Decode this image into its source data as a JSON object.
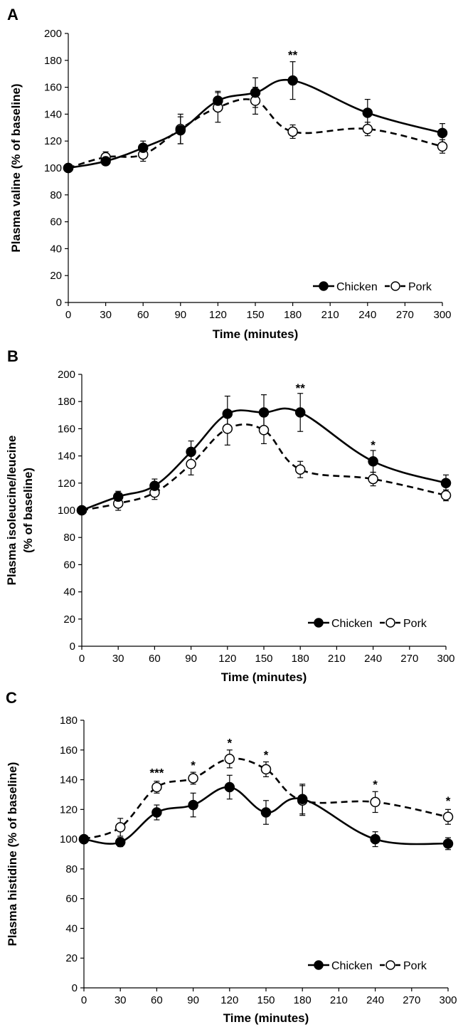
{
  "chart_data": [
    {
      "panel": "A",
      "type": "line",
      "xlabel": "Time (minutes)",
      "ylabel": [
        "Plasma valine (% of baseline)"
      ],
      "x_ticks": [
        0,
        30,
        60,
        90,
        120,
        150,
        180,
        210,
        240,
        270,
        300
      ],
      "y_ticks": [
        0,
        20,
        40,
        60,
        80,
        100,
        120,
        140,
        160,
        180,
        200
      ],
      "xlim": [
        0,
        300
      ],
      "ylim": [
        0,
        200
      ],
      "legend_position": "bottom-right",
      "series": [
        {
          "name": "Chicken",
          "style": "solid",
          "marker": "filled-circle",
          "x": [
            0,
            30,
            60,
            90,
            120,
            150,
            180,
            240,
            300
          ],
          "y": [
            100,
            105,
            115,
            128,
            150,
            156,
            165,
            141,
            126
          ],
          "err": [
            0,
            3,
            5,
            10,
            7,
            11,
            14,
            10,
            7
          ]
        },
        {
          "name": "Pork",
          "style": "dashed",
          "marker": "open-circle",
          "x": [
            0,
            30,
            60,
            90,
            120,
            150,
            180,
            240,
            300
          ],
          "y": [
            100,
            108,
            110,
            129,
            145,
            150,
            127,
            129,
            116
          ],
          "err": [
            0,
            4,
            5,
            11,
            11,
            10,
            5,
            5,
            5
          ]
        }
      ],
      "annotations": [
        {
          "x": 180,
          "y": 181,
          "text": "**"
        }
      ]
    },
    {
      "panel": "B",
      "type": "line",
      "xlabel": "Time (minutes)",
      "ylabel": [
        "Plasma isoleucine/leucine",
        "(% of baseline)"
      ],
      "x_ticks": [
        0,
        30,
        60,
        90,
        120,
        150,
        180,
        210,
        240,
        270,
        300
      ],
      "y_ticks": [
        0,
        20,
        40,
        60,
        80,
        100,
        120,
        140,
        160,
        180,
        200
      ],
      "xlim": [
        0,
        300
      ],
      "ylim": [
        0,
        200
      ],
      "legend_position": "bottom-right",
      "series": [
        {
          "name": "Chicken",
          "style": "solid",
          "marker": "filled-circle",
          "x": [
            0,
            30,
            60,
            90,
            120,
            150,
            180,
            240,
            300
          ],
          "y": [
            100,
            110,
            118,
            143,
            171,
            172,
            172,
            136,
            120
          ],
          "err": [
            0,
            4,
            5,
            8,
            13,
            13,
            14,
            8,
            6
          ]
        },
        {
          "name": "Pork",
          "style": "dashed",
          "marker": "open-circle",
          "x": [
            0,
            30,
            60,
            90,
            120,
            150,
            180,
            240,
            300
          ],
          "y": [
            100,
            105,
            113,
            134,
            160,
            159,
            130,
            123,
            111
          ],
          "err": [
            0,
            5,
            5,
            8,
            12,
            10,
            6,
            5,
            4
          ]
        }
      ],
      "annotations": [
        {
          "x": 180,
          "y": 187,
          "text": "**"
        },
        {
          "x": 240,
          "y": 145,
          "text": "*"
        }
      ]
    },
    {
      "panel": "C",
      "type": "line",
      "xlabel": "Time (minutes)",
      "ylabel": [
        "Plasma histidine (% of baseline)"
      ],
      "x_ticks": [
        0,
        30,
        60,
        90,
        120,
        150,
        180,
        210,
        240,
        270,
        300
      ],
      "y_ticks": [
        0,
        20,
        40,
        60,
        80,
        100,
        120,
        140,
        160,
        180
      ],
      "xlim": [
        0,
        300
      ],
      "ylim": [
        0,
        180
      ],
      "legend_position": "bottom-right",
      "series": [
        {
          "name": "Chicken",
          "style": "solid",
          "marker": "filled-circle",
          "x": [
            0,
            30,
            60,
            90,
            120,
            150,
            180,
            240,
            300
          ],
          "y": [
            100,
            98,
            118,
            123,
            135,
            118,
            127,
            100,
            97
          ],
          "err": [
            0,
            3,
            5,
            8,
            8,
            8,
            10,
            5,
            4
          ]
        },
        {
          "name": "Pork",
          "style": "dashed",
          "marker": "open-circle",
          "x": [
            0,
            30,
            60,
            90,
            120,
            150,
            180,
            240,
            300
          ],
          "y": [
            100,
            108,
            135,
            141,
            154,
            147,
            126,
            125,
            115
          ],
          "err": [
            0,
            6,
            4,
            4,
            6,
            5,
            10,
            7,
            5
          ]
        }
      ],
      "annotations": [
        {
          "x": 60,
          "y": 142,
          "text": "***"
        },
        {
          "x": 90,
          "y": 147,
          "text": "*"
        },
        {
          "x": 120,
          "y": 162,
          "text": "*"
        },
        {
          "x": 150,
          "y": 154,
          "text": "*"
        },
        {
          "x": 240,
          "y": 134,
          "text": "*"
        },
        {
          "x": 300,
          "y": 123,
          "text": "*"
        }
      ]
    }
  ]
}
